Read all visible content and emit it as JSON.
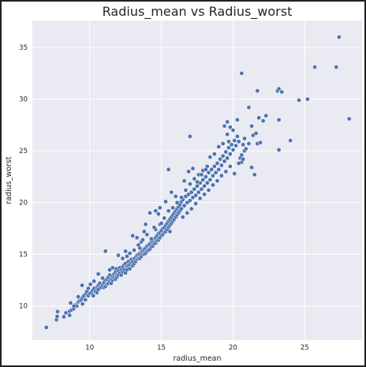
{
  "chart_data": {
    "type": "scatter",
    "title": "Radius_mean vs Radius_worst",
    "xlabel": "radius_mean",
    "ylabel": "radius_worst",
    "xlim": [
      6.0,
      29.0
    ],
    "ylim": [
      6.7,
      37.6
    ],
    "xticks": [
      10,
      15,
      20,
      25
    ],
    "yticks": [
      10,
      15,
      20,
      25,
      30,
      35
    ],
    "grid": true,
    "background_color": "#EAEAF2",
    "marker_color": "#4C72B0",
    "marker_edge_color": "#FFFFFF",
    "points": [
      [
        6.98,
        7.93
      ],
      [
        7.69,
        8.68
      ],
      [
        7.73,
        9.0
      ],
      [
        7.76,
        9.46
      ],
      [
        8.2,
        8.96
      ],
      [
        8.34,
        9.34
      ],
      [
        8.6,
        9.5
      ],
      [
        8.6,
        9.1
      ],
      [
        8.67,
        10.3
      ],
      [
        8.73,
        9.62
      ],
      [
        8.88,
        9.73
      ],
      [
        9.0,
        10.1
      ],
      [
        9.1,
        10.0
      ],
      [
        9.2,
        10.4
      ],
      [
        9.3,
        10.5
      ],
      [
        9.4,
        10.6
      ],
      [
        9.47,
        12.0
      ],
      [
        9.5,
        10.8
      ],
      [
        9.6,
        11.0
      ],
      [
        9.7,
        10.6
      ],
      [
        9.73,
        11.2
      ],
      [
        9.8,
        11.4
      ],
      [
        9.9,
        11.0
      ],
      [
        10.0,
        11.2
      ],
      [
        10.05,
        12.1
      ],
      [
        10.1,
        11.3
      ],
      [
        10.2,
        11.5
      ],
      [
        10.25,
        11.0
      ],
      [
        10.3,
        11.7
      ],
      [
        10.4,
        11.4
      ],
      [
        10.5,
        11.8
      ],
      [
        10.5,
        11.3
      ],
      [
        10.6,
        12.0
      ],
      [
        10.6,
        11.6
      ],
      [
        10.7,
        12.2
      ],
      [
        10.8,
        11.8
      ],
      [
        10.9,
        12.0
      ],
      [
        11.0,
        12.3
      ],
      [
        11.0,
        11.8
      ],
      [
        11.1,
        12.5
      ],
      [
        11.1,
        11.9
      ],
      [
        11.2,
        12.6
      ],
      [
        11.2,
        12.1
      ],
      [
        11.3,
        12.2
      ],
      [
        11.3,
        12.8
      ],
      [
        11.4,
        12.4
      ],
      [
        11.4,
        13.0
      ],
      [
        11.5,
        12.6
      ],
      [
        11.5,
        12.2
      ],
      [
        11.6,
        12.9
      ],
      [
        11.6,
        12.5
      ],
      [
        11.7,
        13.1
      ],
      [
        11.7,
        12.7
      ],
      [
        11.8,
        13.3
      ],
      [
        11.8,
        12.6
      ],
      [
        11.85,
        13.6
      ],
      [
        11.9,
        13.0
      ],
      [
        11.9,
        12.8
      ],
      [
        12.0,
        13.4
      ],
      [
        12.0,
        13.0
      ],
      [
        12.1,
        13.2
      ],
      [
        12.1,
        13.7
      ],
      [
        12.2,
        13.5
      ],
      [
        12.2,
        13.0
      ],
      [
        12.3,
        13.8
      ],
      [
        12.3,
        13.3
      ],
      [
        12.4,
        14.0
      ],
      [
        12.4,
        13.5
      ],
      [
        12.5,
        13.2
      ],
      [
        12.5,
        14.1
      ],
      [
        12.6,
        13.8
      ],
      [
        12.6,
        13.5
      ],
      [
        12.7,
        14.3
      ],
      [
        12.7,
        13.9
      ],
      [
        12.8,
        14.0
      ],
      [
        12.8,
        13.6
      ],
      [
        12.9,
        14.5
      ],
      [
        12.9,
        14.2
      ],
      [
        13.0,
        14.3
      ],
      [
        13.0,
        13.9
      ],
      [
        13.1,
        14.6
      ],
      [
        13.1,
        14.1
      ],
      [
        13.2,
        14.7
      ],
      [
        13.2,
        14.3
      ],
      [
        13.3,
        14.9
      ],
      [
        13.3,
        14.5
      ],
      [
        13.4,
        15.0
      ],
      [
        13.4,
        14.6
      ],
      [
        13.5,
        15.1
      ],
      [
        13.5,
        14.6
      ],
      [
        13.6,
        15.2
      ],
      [
        13.6,
        14.8
      ],
      [
        13.7,
        15.3
      ],
      [
        13.7,
        15.0
      ],
      [
        13.8,
        15.5
      ],
      [
        13.8,
        15.0
      ],
      [
        13.9,
        15.6
      ],
      [
        13.9,
        15.1
      ],
      [
        14.0,
        15.8
      ],
      [
        14.0,
        15.3
      ],
      [
        14.1,
        15.9
      ],
      [
        14.1,
        15.4
      ],
      [
        14.2,
        16.0
      ],
      [
        14.2,
        15.5
      ],
      [
        14.3,
        16.2
      ],
      [
        14.3,
        15.7
      ],
      [
        14.4,
        16.3
      ],
      [
        14.4,
        15.8
      ],
      [
        14.5,
        16.5
      ],
      [
        14.5,
        16.0
      ],
      [
        14.6,
        16.6
      ],
      [
        14.6,
        16.1
      ],
      [
        14.7,
        16.8
      ],
      [
        14.7,
        16.3
      ],
      [
        14.8,
        17.0
      ],
      [
        14.8,
        16.4
      ],
      [
        14.9,
        17.1
      ],
      [
        14.9,
        16.6
      ],
      [
        15.0,
        17.3
      ],
      [
        15.0,
        16.8
      ],
      [
        15.1,
        17.5
      ],
      [
        15.1,
        16.9
      ],
      [
        15.2,
        17.6
      ],
      [
        15.2,
        17.1
      ],
      [
        15.3,
        17.8
      ],
      [
        15.3,
        17.2
      ],
      [
        15.4,
        18.0
      ],
      [
        15.4,
        17.4
      ],
      [
        15.5,
        18.2
      ],
      [
        15.5,
        17.6
      ],
      [
        15.6,
        18.4
      ],
      [
        15.6,
        17.8
      ],
      [
        15.7,
        18.6
      ],
      [
        15.7,
        18.0
      ],
      [
        15.8,
        18.8
      ],
      [
        15.8,
        18.2
      ],
      [
        15.9,
        19.0
      ],
      [
        15.9,
        18.4
      ],
      [
        16.0,
        19.2
      ],
      [
        16.0,
        18.6
      ],
      [
        16.1,
        19.4
      ],
      [
        16.1,
        18.8
      ],
      [
        16.2,
        19.6
      ],
      [
        16.2,
        19.0
      ],
      [
        16.3,
        19.8
      ],
      [
        16.3,
        19.2
      ],
      [
        16.4,
        20.1
      ],
      [
        16.4,
        19.4
      ],
      [
        16.5,
        20.3
      ],
      [
        16.6,
        19.7
      ],
      [
        16.7,
        20.6
      ],
      [
        16.8,
        20.0
      ],
      [
        16.9,
        20.8
      ],
      [
        17.0,
        20.2
      ],
      [
        17.1,
        21.0
      ],
      [
        17.2,
        20.5
      ],
      [
        17.3,
        21.3
      ],
      [
        17.4,
        20.7
      ],
      [
        17.5,
        21.6
      ],
      [
        17.6,
        21.0
      ],
      [
        17.7,
        21.9
      ],
      [
        17.8,
        21.3
      ],
      [
        17.9,
        22.2
      ],
      [
        18.0,
        21.6
      ],
      [
        18.1,
        22.5
      ],
      [
        18.2,
        21.9
      ],
      [
        18.3,
        22.9
      ],
      [
        18.4,
        22.2
      ],
      [
        18.5,
        23.2
      ],
      [
        18.6,
        22.6
      ],
      [
        18.7,
        23.5
      ],
      [
        18.8,
        22.9
      ],
      [
        18.9,
        23.8
      ],
      [
        19.0,
        23.2
      ],
      [
        19.1,
        24.2
      ],
      [
        19.2,
        23.6
      ],
      [
        19.3,
        24.5
      ],
      [
        19.4,
        24.0
      ],
      [
        19.5,
        24.9
      ],
      [
        19.6,
        24.3
      ],
      [
        19.7,
        25.3
      ],
      [
        19.8,
        24.7
      ],
      [
        19.9,
        25.6
      ],
      [
        20.0,
        25.1
      ],
      [
        20.1,
        26.0
      ],
      [
        20.2,
        25.5
      ],
      [
        20.3,
        26.4
      ],
      [
        20.4,
        25.9
      ],
      [
        20.5,
        24.3
      ],
      [
        20.6,
        23.9
      ],
      [
        20.7,
        25.6
      ],
      [
        20.8,
        25.0
      ],
      [
        13.5,
        15.6
      ],
      [
        14.0,
        16.9
      ],
      [
        14.3,
        16.5
      ],
      [
        14.6,
        17.4
      ],
      [
        14.9,
        17.9
      ],
      [
        15.2,
        18.5
      ],
      [
        15.5,
        19.2
      ],
      [
        15.8,
        19.5
      ],
      [
        16.1,
        20.0
      ],
      [
        16.4,
        20.5
      ],
      [
        16.7,
        21.2
      ],
      [
        17.0,
        21.8
      ],
      [
        17.3,
        22.3
      ],
      [
        17.6,
        22.7
      ],
      [
        17.9,
        23.1
      ],
      [
        18.2,
        23.5
      ],
      [
        16.6,
        22.1
      ],
      [
        16.9,
        23.0
      ],
      [
        17.2,
        23.3
      ],
      [
        17.5,
        22.0
      ],
      [
        17.8,
        22.7
      ],
      [
        18.1,
        23.2
      ],
      [
        18.4,
        24.4
      ],
      [
        18.7,
        24.7
      ],
      [
        19.0,
        25.4
      ],
      [
        19.3,
        25.7
      ],
      [
        19.6,
        26.6
      ],
      [
        19.4,
        27.4
      ],
      [
        19.6,
        27.8
      ],
      [
        19.8,
        27.3
      ],
      [
        20.0,
        27.0
      ],
      [
        20.3,
        28.0
      ],
      [
        20.6,
        24.6
      ],
      [
        20.9,
        25.2
      ],
      [
        21.1,
        25.7
      ],
      [
        21.4,
        26.5
      ],
      [
        21.6,
        26.7
      ],
      [
        21.7,
        25.7
      ],
      [
        21.3,
        27.4
      ],
      [
        21.1,
        29.2
      ],
      [
        21.8,
        28.2
      ],
      [
        22.3,
        28.4
      ],
      [
        22.1,
        27.9
      ],
      [
        23.1,
        30.8
      ],
      [
        23.2,
        31.0
      ],
      [
        23.4,
        30.7
      ],
      [
        23.2,
        28.0
      ],
      [
        23.2,
        25.1
      ],
      [
        24.0,
        26.0
      ],
      [
        24.6,
        29.9
      ],
      [
        25.2,
        30.0
      ],
      [
        25.7,
        33.1
      ],
      [
        27.2,
        33.1
      ],
      [
        27.4,
        36.0
      ],
      [
        28.1,
        28.1
      ],
      [
        20.6,
        32.5
      ],
      [
        21.7,
        30.8
      ],
      [
        17.0,
        26.4
      ],
      [
        15.5,
        23.2
      ],
      [
        13.0,
        16.8
      ],
      [
        12.0,
        14.9
      ],
      [
        11.1,
        15.3
      ],
      [
        10.6,
        13.1
      ],
      [
        13.9,
        17.9
      ],
      [
        12.8,
        15.1
      ],
      [
        13.3,
        16.6
      ],
      [
        12.5,
        15.3
      ],
      [
        14.8,
        18.9
      ],
      [
        14.6,
        19.2
      ],
      [
        13.6,
        16.2
      ],
      [
        15.0,
        18.0
      ],
      [
        16.0,
        20.6
      ],
      [
        15.7,
        21.0
      ],
      [
        15.3,
        20.1
      ],
      [
        14.9,
        19.5
      ],
      [
        14.2,
        19.0
      ],
      [
        13.8,
        17.2
      ],
      [
        12.3,
        14.6
      ],
      [
        11.6,
        13.7
      ],
      [
        10.9,
        12.7
      ],
      [
        10.3,
        12.4
      ],
      [
        9.9,
        11.7
      ],
      [
        9.5,
        10.2
      ],
      [
        9.2,
        10.9
      ],
      [
        8.9,
        10.0
      ],
      [
        11.4,
        13.5
      ],
      [
        12.6,
        14.8
      ],
      [
        13.1,
        15.4
      ],
      [
        13.4,
        15.9
      ],
      [
        13.7,
        16.4
      ],
      [
        14.5,
        17.6
      ],
      [
        15.6,
        17.2
      ],
      [
        16.5,
        18.6
      ],
      [
        16.8,
        19.0
      ],
      [
        17.1,
        19.4
      ],
      [
        17.4,
        19.9
      ],
      [
        17.7,
        20.4
      ],
      [
        18.0,
        20.8
      ],
      [
        18.3,
        21.2
      ],
      [
        18.6,
        21.7
      ],
      [
        18.9,
        22.1
      ],
      [
        19.2,
        22.6
      ],
      [
        19.5,
        23.0
      ],
      [
        19.8,
        23.5
      ],
      [
        20.1,
        22.8
      ],
      [
        20.4,
        23.8
      ],
      [
        20.7,
        24.2
      ],
      [
        20.8,
        26.2
      ],
      [
        21.5,
        22.7
      ],
      [
        21.9,
        25.8
      ],
      [
        21.3,
        23.4
      ],
      [
        19.7,
        25.9
      ]
    ]
  }
}
